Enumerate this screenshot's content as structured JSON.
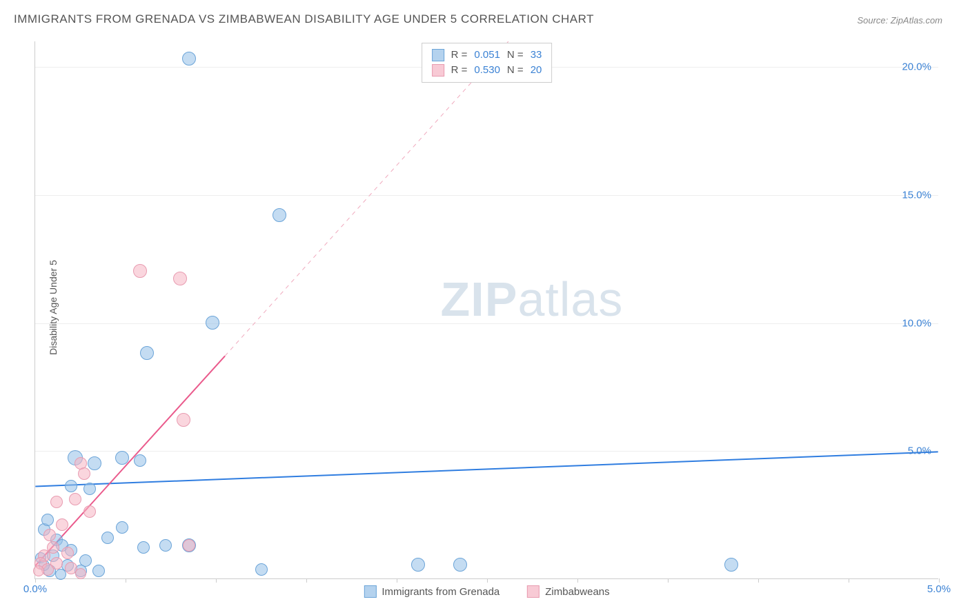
{
  "title": "IMMIGRANTS FROM GRENADA VS ZIMBABWEAN DISABILITY AGE UNDER 5 CORRELATION CHART",
  "source": "Source: ZipAtlas.com",
  "ylabel": "Disability Age Under 5",
  "watermark_a": "ZIP",
  "watermark_b": "atlas",
  "chart": {
    "type": "scatter",
    "xlim": [
      0,
      5.0
    ],
    "ylim": [
      0,
      21.0
    ],
    "ytick_vals": [
      5.0,
      10.0,
      15.0,
      20.0
    ],
    "ytick_labels": [
      "5.0%",
      "10.0%",
      "15.0%",
      "20.0%"
    ],
    "xtick_vals": [
      0.0,
      0.5,
      1.0,
      1.5,
      2.0,
      2.5,
      3.0,
      3.5,
      4.0,
      4.5,
      5.0
    ],
    "xtick_labels_shown": {
      "0.0": "0.0%",
      "5.0": "5.0%"
    },
    "background_color": "#ffffff",
    "grid_color": "#eeeeee",
    "marker_radius": 9,
    "series": [
      {
        "name": "Immigrants from Grenada",
        "color_fill": "#94bfe7",
        "color_stroke": "#6ba4d8",
        "class": "blue",
        "R": "0.051",
        "N": "33",
        "trend": {
          "x1": 0,
          "y1": 3.6,
          "x2": 5.0,
          "y2": 4.95,
          "color": "#2f7de0",
          "width": 2,
          "dash": "none"
        },
        "trend_ext": {
          "x1": 0.0,
          "y1": 3.6,
          "x2": 5.0,
          "y2": 4.95
        },
        "points": [
          {
            "x": 0.85,
            "y": 20.3,
            "r": 10
          },
          {
            "x": 1.35,
            "y": 14.2,
            "r": 10
          },
          {
            "x": 0.98,
            "y": 10.0,
            "r": 10
          },
          {
            "x": 0.62,
            "y": 8.8,
            "r": 10
          },
          {
            "x": 0.48,
            "y": 4.7,
            "r": 10
          },
          {
            "x": 0.22,
            "y": 4.7,
            "r": 11
          },
          {
            "x": 0.58,
            "y": 4.6,
            "r": 9
          },
          {
            "x": 0.33,
            "y": 4.5,
            "r": 10
          },
          {
            "x": 0.2,
            "y": 3.6,
            "r": 9
          },
          {
            "x": 0.48,
            "y": 2.0,
            "r": 9
          },
          {
            "x": 0.4,
            "y": 1.6,
            "r": 9
          },
          {
            "x": 0.72,
            "y": 1.3,
            "r": 9
          },
          {
            "x": 0.85,
            "y": 1.3,
            "r": 10
          },
          {
            "x": 0.6,
            "y": 1.2,
            "r": 9
          },
          {
            "x": 0.12,
            "y": 1.5,
            "r": 9
          },
          {
            "x": 0.15,
            "y": 1.3,
            "r": 9
          },
          {
            "x": 0.2,
            "y": 1.1,
            "r": 9
          },
          {
            "x": 0.1,
            "y": 0.9,
            "r": 9
          },
          {
            "x": 0.28,
            "y": 0.7,
            "r": 9
          },
          {
            "x": 0.18,
            "y": 0.5,
            "r": 9
          },
          {
            "x": 0.25,
            "y": 0.3,
            "r": 9
          },
          {
            "x": 0.35,
            "y": 0.3,
            "r": 9
          },
          {
            "x": 0.08,
            "y": 0.3,
            "r": 9
          },
          {
            "x": 1.25,
            "y": 0.35,
            "r": 9
          },
          {
            "x": 2.12,
            "y": 0.55,
            "r": 10
          },
          {
            "x": 2.35,
            "y": 0.55,
            "r": 10
          },
          {
            "x": 3.85,
            "y": 0.55,
            "r": 10
          },
          {
            "x": 0.05,
            "y": 1.9,
            "r": 9
          },
          {
            "x": 0.07,
            "y": 2.3,
            "r": 9
          },
          {
            "x": 0.3,
            "y": 3.5,
            "r": 9
          },
          {
            "x": 0.03,
            "y": 0.8,
            "r": 8
          },
          {
            "x": 0.14,
            "y": 0.15,
            "r": 8
          },
          {
            "x": 0.05,
            "y": 0.5,
            "r": 8
          }
        ]
      },
      {
        "name": "Zimbabweans",
        "color_fill": "#f5b4c3",
        "color_stroke": "#e89bb0",
        "class": "pink",
        "R": "0.530",
        "N": "20",
        "trend": {
          "x1": 0,
          "y1": 0.5,
          "x2": 1.05,
          "y2": 8.7,
          "color": "#ea5a8c",
          "width": 2,
          "dash": "none"
        },
        "trend_ext": {
          "x1": 1.05,
          "y1": 8.7,
          "x2": 2.62,
          "y2": 21.0,
          "color": "#f0a9bd",
          "width": 1,
          "dash": "6,6"
        },
        "points": [
          {
            "x": 0.58,
            "y": 12.0,
            "r": 10
          },
          {
            "x": 0.8,
            "y": 11.7,
            "r": 10
          },
          {
            "x": 0.82,
            "y": 6.2,
            "r": 10
          },
          {
            "x": 0.25,
            "y": 4.5,
            "r": 9
          },
          {
            "x": 0.27,
            "y": 4.1,
            "r": 9
          },
          {
            "x": 0.22,
            "y": 3.1,
            "r": 9
          },
          {
            "x": 0.12,
            "y": 3.0,
            "r": 9
          },
          {
            "x": 0.3,
            "y": 2.6,
            "r": 9
          },
          {
            "x": 0.15,
            "y": 2.1,
            "r": 9
          },
          {
            "x": 0.08,
            "y": 1.7,
            "r": 9
          },
          {
            "x": 0.1,
            "y": 1.2,
            "r": 9
          },
          {
            "x": 0.18,
            "y": 1.0,
            "r": 9
          },
          {
            "x": 0.05,
            "y": 0.9,
            "r": 9
          },
          {
            "x": 0.12,
            "y": 0.6,
            "r": 9
          },
          {
            "x": 0.03,
            "y": 0.6,
            "r": 9
          },
          {
            "x": 0.2,
            "y": 0.4,
            "r": 9
          },
          {
            "x": 0.07,
            "y": 0.35,
            "r": 9
          },
          {
            "x": 0.02,
            "y": 0.3,
            "r": 8
          },
          {
            "x": 0.25,
            "y": 0.2,
            "r": 8
          },
          {
            "x": 0.85,
            "y": 1.3,
            "r": 9
          }
        ]
      }
    ]
  },
  "stats_box": {
    "rows": [
      {
        "swatch": "blue",
        "r_label": "R  =  ",
        "r_val": "0.051",
        "n_label": "   N  =  ",
        "n_val": "33"
      },
      {
        "swatch": "pink",
        "r_label": "R  =  ",
        "r_val": "0.530",
        "n_label": "   N  =  ",
        "n_val": "20"
      }
    ]
  },
  "legend": [
    {
      "swatch": "blue",
      "label": "Immigrants from Grenada"
    },
    {
      "swatch": "pink",
      "label": "Zimbabweans"
    }
  ]
}
